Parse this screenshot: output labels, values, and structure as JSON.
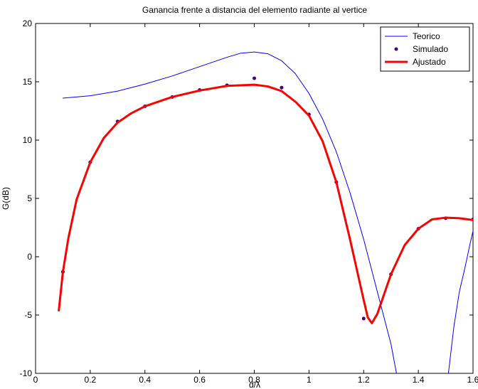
{
  "chart_data": {
    "type": "line",
    "title": "Ganancia frente a distancia del elemento radiante al vertice",
    "xlabel": "d/λ",
    "ylabel": "G(dB)",
    "xlim": [
      0,
      1.6
    ],
    "ylim": [
      -10,
      20
    ],
    "xticks": [
      "0",
      "0.2",
      "0.4",
      "0.6",
      "0.8",
      "1",
      "1.2",
      "1.4",
      "1.6"
    ],
    "yticks": [
      "-10",
      "-5",
      "0",
      "5",
      "10",
      "15",
      "20"
    ],
    "grid": false,
    "legend_position": "top-right",
    "series": [
      {
        "name": "Teorico",
        "style": "line",
        "color": "#0000ff",
        "points": [
          [
            0.1,
            13.6
          ],
          [
            0.2,
            13.8
          ],
          [
            0.3,
            14.2
          ],
          [
            0.4,
            14.8
          ],
          [
            0.5,
            15.5
          ],
          [
            0.6,
            16.3
          ],
          [
            0.7,
            17.1
          ],
          [
            0.75,
            17.45
          ],
          [
            0.8,
            17.55
          ],
          [
            0.85,
            17.4
          ],
          [
            0.9,
            16.8
          ],
          [
            0.95,
            15.7
          ],
          [
            1.0,
            14.0
          ],
          [
            1.05,
            11.8
          ],
          [
            1.1,
            9.0
          ],
          [
            1.15,
            5.5
          ],
          [
            1.2,
            1.5
          ],
          [
            1.25,
            -3.0
          ],
          [
            1.3,
            -7.5
          ],
          [
            1.32,
            -10.0
          ]
        ],
        "points_segment2": [
          [
            1.51,
            -10.0
          ],
          [
            1.53,
            -6.0
          ],
          [
            1.55,
            -3.0
          ],
          [
            1.57,
            -1.0
          ],
          [
            1.59,
            1.2
          ],
          [
            1.6,
            2.2
          ]
        ]
      },
      {
        "name": "Simulado",
        "style": "markers",
        "color": "#4b0082",
        "points": [
          [
            0.1,
            -1.3
          ],
          [
            0.2,
            8.1
          ],
          [
            0.3,
            11.6
          ],
          [
            0.4,
            12.9
          ],
          [
            0.5,
            13.7
          ],
          [
            0.6,
            14.3
          ],
          [
            0.7,
            14.7
          ],
          [
            0.8,
            15.3
          ],
          [
            0.9,
            14.5
          ],
          [
            1.0,
            12.2
          ],
          [
            1.1,
            6.4
          ],
          [
            1.2,
            -5.3
          ],
          [
            1.3,
            -1.5
          ],
          [
            1.4,
            2.4
          ],
          [
            1.5,
            3.3
          ],
          [
            1.6,
            3.2
          ]
        ]
      },
      {
        "name": "Ajustado",
        "style": "line",
        "color": "#ff0000",
        "points": [
          [
            0.085,
            -4.6
          ],
          [
            0.1,
            -1.3
          ],
          [
            0.12,
            1.6
          ],
          [
            0.15,
            4.9
          ],
          [
            0.2,
            8.1
          ],
          [
            0.25,
            10.2
          ],
          [
            0.3,
            11.5
          ],
          [
            0.35,
            12.3
          ],
          [
            0.4,
            12.9
          ],
          [
            0.5,
            13.7
          ],
          [
            0.6,
            14.25
          ],
          [
            0.7,
            14.65
          ],
          [
            0.8,
            14.75
          ],
          [
            0.85,
            14.6
          ],
          [
            0.9,
            14.2
          ],
          [
            0.95,
            13.3
          ],
          [
            1.0,
            12.1
          ],
          [
            1.05,
            9.9
          ],
          [
            1.1,
            6.4
          ],
          [
            1.15,
            1.5
          ],
          [
            1.2,
            -3.7
          ],
          [
            1.215,
            -5.2
          ],
          [
            1.23,
            -5.7
          ],
          [
            1.25,
            -4.9
          ],
          [
            1.3,
            -1.5
          ],
          [
            1.35,
            1.0
          ],
          [
            1.4,
            2.4
          ],
          [
            1.45,
            3.2
          ],
          [
            1.5,
            3.35
          ],
          [
            1.55,
            3.3
          ],
          [
            1.6,
            3.15
          ]
        ]
      }
    ]
  }
}
